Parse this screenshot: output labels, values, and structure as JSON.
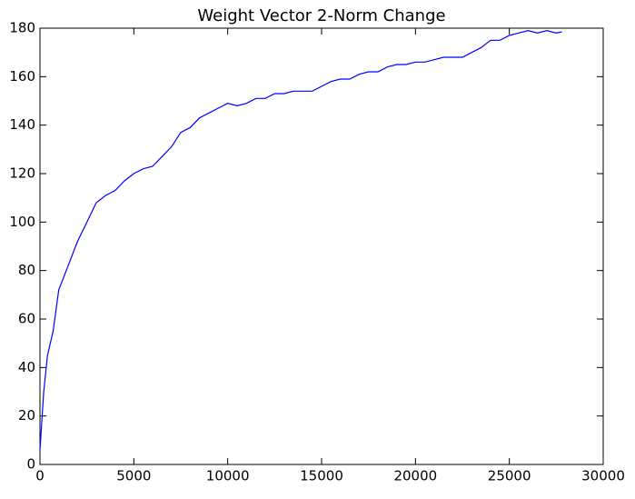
{
  "chart_data": {
    "type": "line",
    "title": "Weight Vector 2-Norm Change",
    "x": [
      0,
      200,
      400,
      700,
      1000,
      1500,
      2000,
      2500,
      3000,
      3500,
      4000,
      4500,
      5000,
      5500,
      6000,
      6500,
      7000,
      7500,
      8000,
      8500,
      9000,
      9500,
      10000,
      10500,
      11000,
      11500,
      12000,
      12500,
      13000,
      13500,
      14000,
      14500,
      15000,
      15500,
      16000,
      16500,
      17000,
      17500,
      18000,
      18500,
      19000,
      19500,
      20000,
      20500,
      21000,
      21500,
      22000,
      22500,
      23000,
      23500,
      24000,
      24500,
      25000,
      25500,
      26000,
      26500,
      27000,
      27500,
      27800
    ],
    "values": [
      6,
      30,
      45,
      55,
      72,
      82,
      92,
      100,
      108,
      111,
      113,
      117,
      120,
      122,
      123,
      127,
      131,
      137,
      139,
      143,
      145,
      147,
      149,
      148,
      149,
      151,
      151,
      153,
      153,
      154,
      154,
      154,
      156,
      158,
      159,
      159,
      161,
      162,
      162,
      164,
      165,
      165,
      166,
      166,
      167,
      168,
      168,
      168,
      170,
      172,
      175,
      175,
      177,
      178,
      179,
      178,
      179,
      178,
      178.5
    ],
    "color": "#0000ff",
    "xlim": [
      0,
      30000
    ],
    "xticks": [
      0,
      5000,
      10000,
      15000,
      20000,
      25000,
      30000
    ],
    "ylim": [
      0,
      180
    ],
    "yticks": [
      0,
      20,
      40,
      60,
      80,
      100,
      120,
      140,
      160,
      180
    ],
    "grid": false
  }
}
